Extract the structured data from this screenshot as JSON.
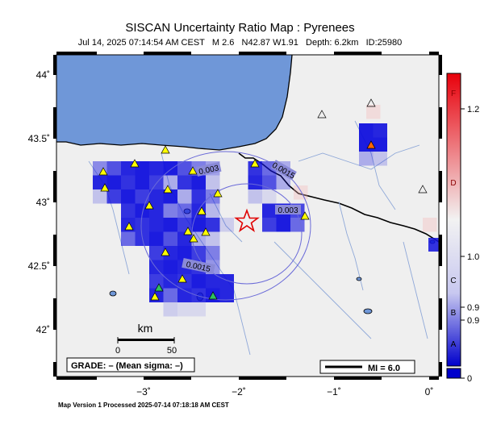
{
  "header": {
    "title": "SISCAN Uncertainty Ratio Map : Pyrenees",
    "subtitle": "Jul 14, 2025 07:14:54 AM CEST   M 2.6   N42.87 W1.91   Depth: 6.2km   ID:25980"
  },
  "axes": {
    "lat_labels": [
      "44˚",
      "43.5˚",
      "43˚",
      "42.5˚",
      "42˚"
    ],
    "lon_labels": [
      "−3˚",
      "−2˚",
      "−1˚",
      "0˚"
    ]
  },
  "contours": [
    "0.003",
    "0.003",
    "0.0015",
    "0.0015"
  ],
  "scalebar": {
    "unit": "km",
    "ticks": [
      "0",
      "50"
    ]
  },
  "grade_box": "GRADE: – (Mean sigma: –)",
  "mi_legend": "MI = 6.0",
  "colorbar": {
    "letters": [
      "F",
      "D",
      "C",
      "B",
      "A"
    ],
    "values": [
      "1.2",
      "1.0",
      "0.9",
      "0.9",
      "0"
    ],
    "colors": {
      "top": "#e8000b",
      "mid": "#f2f2f2",
      "bottom": "#0000cc"
    }
  },
  "footer": "Map Version 1 Processed 2025-07-14 07:18:18 AM CEST",
  "epicenter": {
    "lat": 42.87,
    "lon": -1.91,
    "symbol": "star-icon"
  },
  "colors": {
    "sea": "#6f97d8",
    "land": "#efefef",
    "river": "#8fa8d8",
    "cell": "#1010dd",
    "station": "#ffff00"
  }
}
